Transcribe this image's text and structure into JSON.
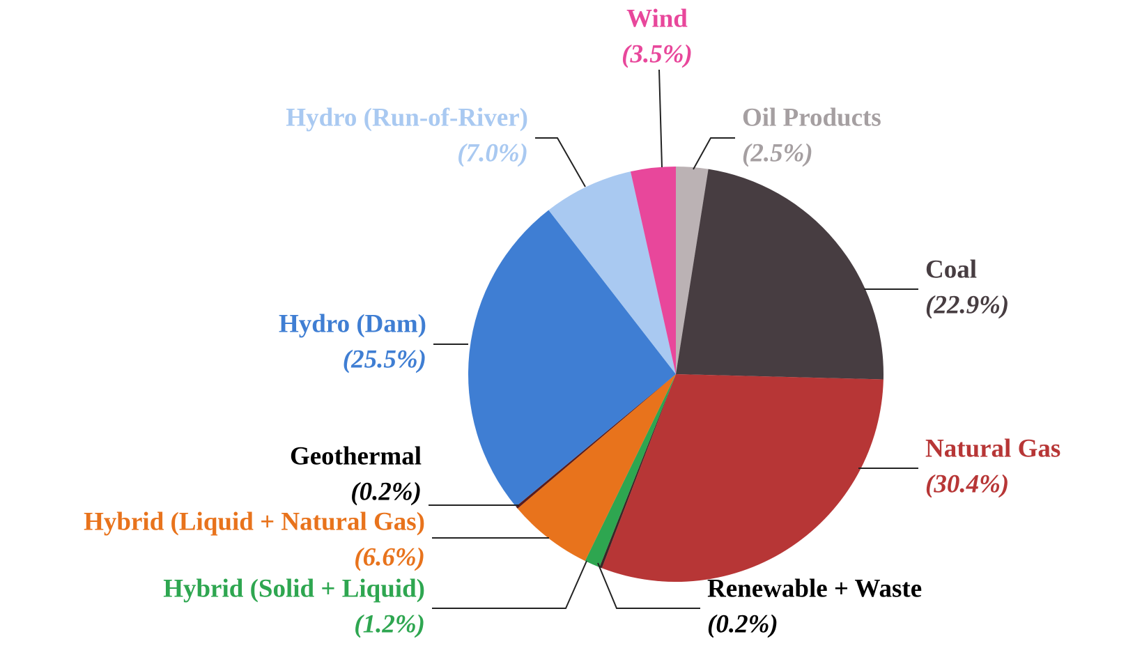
{
  "chart_data": {
    "type": "pie",
    "categories": [
      "Oil Products",
      "Coal",
      "Natural Gas",
      "Renewable + Waste",
      "Hybrid (Solid + Liquid)",
      "Hybrid (Liquid + Natural Gas)",
      "Geothermal",
      "Hydro (Dam)",
      "Hydro (Run-of-River)",
      "Wind"
    ],
    "values": [
      2.5,
      22.9,
      30.4,
      0.2,
      1.2,
      6.6,
      0.2,
      25.5,
      7.0,
      3.5
    ],
    "value_labels": [
      "(2.5%)",
      "(22.9%)",
      "(30.4%)",
      "(0.2%)",
      "(1.2%)",
      "(6.6%)",
      "(0.2%)",
      "(25.5%)",
      "(7.0%)",
      "(3.5%)"
    ],
    "colors": [
      "#bbb2b4",
      "#473d41",
      "#b73636",
      "#3b2727",
      "#2ea650",
      "#e8731c",
      "#5a1c1c",
      "#3f7ed3",
      "#a9c9f1",
      "#e8479b"
    ],
    "label_colors": [
      "#a59fa1",
      "#473d41",
      "#b73636",
      "#000000",
      "#2ea650",
      "#e8731c",
      "#000000",
      "#3f7ed3",
      "#a9c9f1",
      "#e8479b"
    ]
  }
}
